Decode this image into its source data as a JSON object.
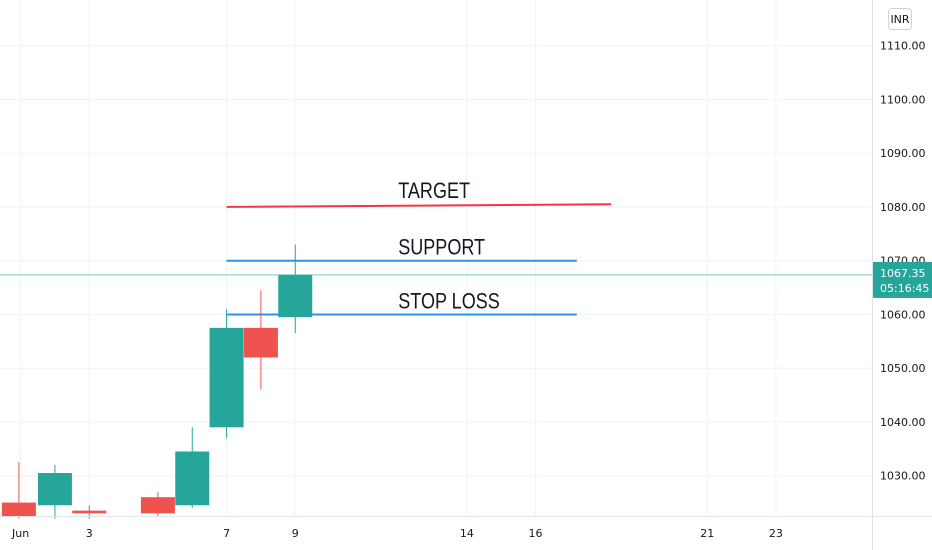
{
  "currency_label": "INR",
  "price_badge": {
    "price": "1067.35",
    "countdown": "05:16:45",
    "color": "#26a69a"
  },
  "colors": {
    "up": "#26a69a",
    "down": "#ef5350",
    "target": "#f23645",
    "level": "#2196f3",
    "grid": "#f0f3fa",
    "axis_text": "#131722"
  },
  "chart_data": {
    "type": "candlestick",
    "x_ticks": [
      {
        "label": "Jun",
        "day": 1
      },
      {
        "label": "3",
        "day": 3
      },
      {
        "label": "7",
        "day": 7
      },
      {
        "label": "9",
        "day": 9
      },
      {
        "label": "14",
        "day": 14
      },
      {
        "label": "16",
        "day": 16
      },
      {
        "label": "21",
        "day": 21
      },
      {
        "label": "23",
        "day": 23
      }
    ],
    "y_ticks": [
      "1030.00",
      "1040.00",
      "1050.00",
      "1060.00",
      "1070.00",
      "1080.00",
      "1090.00",
      "1100.00",
      "1110.00"
    ],
    "ylim": [
      1022.5,
      1118.5
    ],
    "xlim": [
      0.4,
      25.8
    ],
    "candles": [
      {
        "day": 0.95,
        "open": 1025.0,
        "high": 1032.5,
        "low": 1022.0,
        "close": 1022.5
      },
      {
        "day": 2.0,
        "open": 1024.5,
        "high": 1032.0,
        "low": 1022.0,
        "close": 1030.5
      },
      {
        "day": 3.0,
        "open": 1023.5,
        "high": 1024.5,
        "low": 1022.0,
        "close": 1023.0
      },
      {
        "day": 5.0,
        "open": 1026.0,
        "high": 1027.0,
        "low": 1022.5,
        "close": 1023.0
      },
      {
        "day": 6.0,
        "open": 1024.5,
        "high": 1039.0,
        "low": 1024.0,
        "close": 1034.5
      },
      {
        "day": 7.0,
        "open": 1039.0,
        "high": 1061.0,
        "low": 1037.0,
        "close": 1057.5
      },
      {
        "day": 8.0,
        "open": 1057.5,
        "high": 1064.5,
        "low": 1046.0,
        "close": 1052.0
      },
      {
        "day": 9.0,
        "open": 1059.5,
        "high": 1073.0,
        "low": 1056.5,
        "close": 1067.35
      }
    ],
    "levels": [
      {
        "name": "TARGET",
        "from_day": 7.0,
        "to_day": 18.2,
        "y_start": 1080.0,
        "y_end": 1080.5,
        "color": "#f23645",
        "label_day": 12.0
      },
      {
        "name": "SUPPORT",
        "from_day": 7.0,
        "to_day": 17.2,
        "y_start": 1070.0,
        "y_end": 1070.0,
        "color": "#2196f3",
        "label_day": 12.0
      },
      {
        "name": "STOP LOSS",
        "from_day": 7.0,
        "to_day": 17.2,
        "y_start": 1060.0,
        "y_end": 1060.0,
        "color": "#2196f3",
        "label_day": 12.0
      }
    ],
    "current_price": 1067.35,
    "grid": true
  }
}
